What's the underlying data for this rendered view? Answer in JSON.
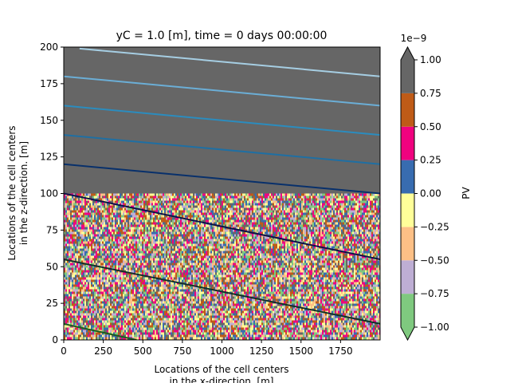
{
  "chart_data": {
    "type": "heatmap",
    "title": "yC = 1.0 [m], time = 0 days 00:00:00",
    "xlabel_line1": "Locations of the cell centers",
    "xlabel_line2": "in the x-direction. [m]",
    "ylabel_line1": "Locations of the cell centers",
    "ylabel_line2": "in the z-direction. [m]",
    "xlim": [
      0,
      2000
    ],
    "ylim": [
      0,
      200
    ],
    "x_ticks": [
      0,
      250,
      500,
      750,
      1000,
      1250,
      1500,
      1750
    ],
    "x_tick_labels": [
      "0",
      "250",
      "500",
      "750",
      "1000",
      "1250",
      "1500",
      "1750"
    ],
    "y_ticks": [
      0,
      25,
      50,
      75,
      100,
      125,
      150,
      175,
      200
    ],
    "y_tick_labels": [
      "0",
      "25",
      "50",
      "75",
      "100",
      "125",
      "150",
      "175",
      "200"
    ],
    "upper_region": {
      "z_range": [
        100,
        200
      ],
      "color": "#666666"
    },
    "noise_region": {
      "z_range": [
        0,
        100
      ]
    },
    "contours": [
      {
        "x": [
          100,
          2000
        ],
        "z": [
          199,
          180
        ],
        "color": "#a6cee3"
      },
      {
        "x": [
          0,
          2000
        ],
        "z": [
          180,
          160
        ],
        "color": "#6baed6"
      },
      {
        "x": [
          0,
          2000
        ],
        "z": [
          160,
          140
        ],
        "color": "#2b8cbe"
      },
      {
        "x": [
          0,
          2000
        ],
        "z": [
          140,
          120
        ],
        "color": "#1f6fa3"
      },
      {
        "x": [
          0,
          2000
        ],
        "z": [
          120,
          100
        ],
        "color": "#08306b"
      },
      {
        "x": [
          0,
          2000
        ],
        "z": [
          100,
          55
        ],
        "color": "#0c1449"
      },
      {
        "x": [
          0,
          2000
        ],
        "z": [
          55,
          11
        ],
        "color": "#10302a"
      },
      {
        "x": [
          0,
          460
        ],
        "z": [
          11,
          0
        ],
        "color": "#1b5e20"
      }
    ],
    "colorbar": {
      "label": "PV",
      "multiplier": "1e−9",
      "extend": "both",
      "tick_labels": [
        "−1.00",
        "−0.75",
        "−0.50",
        "−0.25",
        "0.00",
        "0.25",
        "0.50",
        "0.75",
        "1.00"
      ],
      "tick_values": [
        -1.0,
        -0.75,
        -0.5,
        -0.25,
        0.0,
        0.25,
        0.5,
        0.75,
        1.0
      ],
      "colors": [
        "#7fc97f",
        "#beaed4",
        "#fdc086",
        "#ffff99",
        "#386cb0",
        "#f0027f",
        "#bf5b17",
        "#666666"
      ]
    }
  }
}
